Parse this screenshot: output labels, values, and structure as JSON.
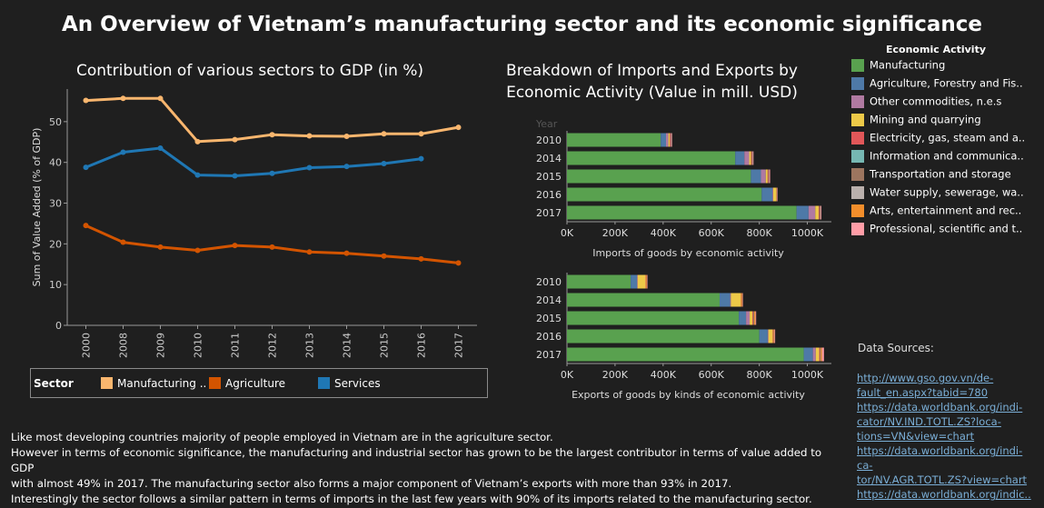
{
  "page": {
    "title": "An Overview of Vietnam’s manufacturing sector and its economic significance"
  },
  "gdp_chart": {
    "title": "Contribution of various sectors to GDP (in %)",
    "ylabel": "Sum of Value Added (% of GDP)",
    "legend_header": "Sector",
    "legend_labels": [
      "Manufacturing ..",
      "Agriculture",
      "Services"
    ]
  },
  "trade_header": {
    "title_line1": "Breakdown of Imports and Exports by",
    "title_line2": "Economic Activity (Value in mill. USD)",
    "year_header": "Year"
  },
  "activity_legend": {
    "title": "Economic Activity",
    "items": [
      {
        "label": "Manufacturing",
        "color": "#59a14f"
      },
      {
        "label": "Agriculture, Forestry and Fis..",
        "color": "#4e79a7"
      },
      {
        "label": "Other commodities, n.e.s",
        "color": "#b07aa1"
      },
      {
        "label": "Mining and quarrying",
        "color": "#edc948"
      },
      {
        "label": "Electricity, gas, steam and a..",
        "color": "#e15759"
      },
      {
        "label": "Information and communica..",
        "color": "#76b7b2"
      },
      {
        "label": "Transportation and storage",
        "color": "#9c755f"
      },
      {
        "label": "Water supply, sewerage, wa..",
        "color": "#bab0ac"
      },
      {
        "label": "Arts, entertainment and rec..",
        "color": "#f28e2b"
      },
      {
        "label": "Professional, scientific and t..",
        "color": "#ff9da7"
      }
    ]
  },
  "notes": [
    "Like most developing countries majority of people employed in Vietnam are in the agriculture sector.",
    "However in terms of economic significance, the manufacturing and industrial sector has grown to be the largest contributor in terms of value added to GDP",
    "with almost 49% in 2017. The manufacturing sector also forms a major component of Vietnam’s exports with more than 93% in 2017.",
    "Interestingly the sector follows a similar pattern in terms of imports in the last few years with 90% of its imports related to the manufacturing sector."
  ],
  "sources": {
    "title": "Data Sources:",
    "links": [
      "http://www.gso.gov.vn/de-",
      "fault_en.aspx?tabid=780",
      "https://data.worldbank.org/indi-",
      "cator/NV.IND.TOTL.ZS?loca-",
      "tions=VN&view=chart",
      "https://data.worldbank.org/indi-",
      "ca-",
      "tor/NV.AGR.TOTL.ZS?view=chart",
      "https://data.worldbank.org/indic.."
    ]
  },
  "chart_data": [
    {
      "type": "line",
      "title": "Contribution of various sectors to GDP (in %)",
      "xlabel": "",
      "ylabel": "Sum of Value Added (% of GDP)",
      "x": [
        "2000",
        "2008",
        "2009",
        "2010",
        "2011",
        "2012",
        "2013",
        "2014",
        "2015",
        "2016",
        "2017"
      ],
      "ylim": [
        0,
        58
      ],
      "yticks": [
        0,
        10,
        20,
        30,
        40,
        50
      ],
      "grid": false,
      "legend_position": "bottom",
      "series": [
        {
          "name": "Manufacturing ..",
          "color": "#f9b66e",
          "values": [
            55.2,
            55.7,
            55.7,
            45.1,
            45.6,
            46.8,
            46.5,
            46.4,
            47.0,
            47.0,
            48.6
          ]
        },
        {
          "name": "Services",
          "color": "#1f77b4",
          "values": [
            38.8,
            42.5,
            43.5,
            36.9,
            36.7,
            37.3,
            38.7,
            39.0,
            39.7,
            40.9,
            null
          ]
        },
        {
          "name": "Agriculture",
          "color": "#d35400",
          "values": [
            24.5,
            20.4,
            19.2,
            18.4,
            19.6,
            19.2,
            18.0,
            17.7,
            17.0,
            16.3,
            15.3
          ]
        }
      ]
    },
    {
      "type": "bar",
      "orientation": "horizontal",
      "stacked": true,
      "title": "",
      "xlabel": "Imports of goods by economic activity",
      "ylabel": "Year",
      "categories": [
        "2010",
        "2014",
        "2015",
        "2016",
        "2017"
      ],
      "xlim": [
        0,
        1100
      ],
      "xticks": [
        "0K",
        "200K",
        "400K",
        "600K",
        "800K",
        "1000K"
      ],
      "series": [
        {
          "name": "Manufacturing",
          "values": [
            390,
            700,
            765,
            810,
            955
          ]
        },
        {
          "name": "Agriculture, Forestry and Fis..",
          "values": [
            22,
            38,
            42,
            45,
            50
          ]
        },
        {
          "name": "Other commodities, n.e.s",
          "values": [
            10,
            20,
            20,
            3,
            28
          ]
        },
        {
          "name": "Mining and quarrying",
          "values": [
            6,
            8,
            8,
            14,
            14
          ]
        },
        {
          "name": "Electricity, gas, steam and a..",
          "values": [
            3,
            3,
            3,
            1,
            3
          ]
        },
        {
          "name": "Information and communica..",
          "values": [
            0,
            0,
            0,
            0,
            0
          ]
        },
        {
          "name": "Transportation and storage",
          "values": [
            2,
            3,
            3,
            1,
            4
          ]
        },
        {
          "name": "Water supply, sewerage, wa..",
          "values": [
            1,
            1,
            1,
            0,
            1
          ]
        },
        {
          "name": "Arts, entertainment and rec..",
          "values": [
            0,
            0,
            0,
            0,
            0
          ]
        },
        {
          "name": "Professional, scientific and t..",
          "values": [
            3,
            3,
            3,
            1,
            3
          ]
        }
      ]
    },
    {
      "type": "bar",
      "orientation": "horizontal",
      "stacked": true,
      "title": "",
      "xlabel": "Exports of goods by kinds of economic activity",
      "ylabel": "Year",
      "categories": [
        "2010",
        "2014",
        "2015",
        "2016",
        "2017"
      ],
      "xlim": [
        0,
        1100
      ],
      "xticks": [
        "0K",
        "200K",
        "400K",
        "600K",
        "800K",
        "1000K"
      ],
      "series": [
        {
          "name": "Manufacturing",
          "values": [
            265,
            635,
            715,
            800,
            985
          ]
        },
        {
          "name": "Agriculture, Forestry and Fis..",
          "values": [
            26,
            44,
            30,
            35,
            38
          ]
        },
        {
          "name": "Other commodities, n.e.s",
          "values": [
            3,
            3,
            15,
            3,
            12
          ]
        },
        {
          "name": "Mining and quarrying",
          "values": [
            33,
            42,
            12,
            18,
            14
          ]
        },
        {
          "name": "Electricity, gas, steam and a..",
          "values": [
            2,
            2,
            3,
            2,
            3
          ]
        },
        {
          "name": "Information and communica..",
          "values": [
            0,
            0,
            0,
            0,
            0
          ]
        },
        {
          "name": "Transportation and storage",
          "values": [
            1,
            1,
            3,
            2,
            3
          ]
        },
        {
          "name": "Water supply, sewerage, wa..",
          "values": [
            0,
            0,
            1,
            0,
            1
          ]
        },
        {
          "name": "Arts, entertainment and rec..",
          "values": [
            3,
            3,
            5,
            3,
            5
          ]
        },
        {
          "name": "Professional, scientific and t..",
          "values": [
            2,
            2,
            3,
            3,
            8
          ]
        }
      ]
    }
  ]
}
